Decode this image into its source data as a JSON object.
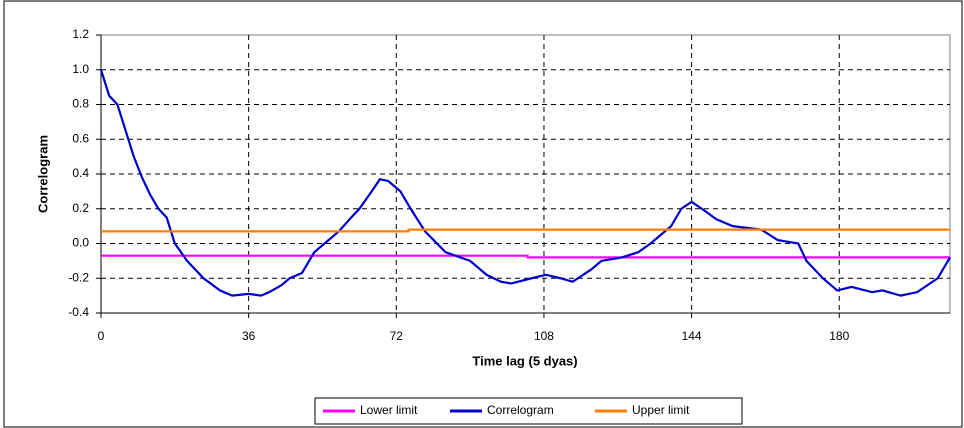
{
  "chart_data": {
    "type": "line",
    "x_label": "Time lag (5 dyas)",
    "y_label": "Correlogram",
    "xlim": [
      0,
      207
    ],
    "xticks": [
      0,
      36,
      72,
      108,
      144,
      180
    ],
    "ylim": [
      -0.4,
      1.2
    ],
    "yticks": [
      -0.4,
      -0.2,
      {
        "value": 0,
        "label": "0.0"
      },
      0.2,
      0.4,
      0.6,
      0.8,
      {
        "value": 1,
        "label": "1.0"
      },
      1.2
    ],
    "grid": true,
    "legend": "bottom",
    "series": [
      {
        "name": "Lower limit",
        "color": "#ff00ff",
        "x": [
          0,
          104,
          104,
          207
        ],
        "values": [
          -0.07,
          -0.07,
          -0.08,
          -0.08
        ]
      },
      {
        "name": "Correlogram",
        "color": "#0000cc",
        "x": [
          0,
          2,
          4,
          6,
          8,
          10,
          12,
          14,
          16,
          18,
          21,
          25,
          29,
          32,
          36,
          39,
          41,
          44,
          46,
          49,
          52,
          55,
          58,
          61,
          63,
          66,
          68,
          70,
          73,
          75.5,
          79,
          84,
          90,
          94,
          97.5,
          100,
          105,
          108.5,
          112,
          115,
          119.5,
          122,
          127,
          131,
          134,
          139,
          141.5,
          144,
          146.5,
          150,
          154,
          161,
          165,
          170,
          172,
          176,
          179.5,
          183,
          188,
          190.5,
          195,
          199,
          204,
          207
        ],
        "values": [
          1.0,
          0.85,
          0.8,
          0.65,
          0.5,
          0.38,
          0.28,
          0.2,
          0.15,
          0.0,
          -0.1,
          -0.2,
          -0.27,
          -0.3,
          -0.29,
          -0.3,
          -0.28,
          -0.24,
          -0.2,
          -0.17,
          -0.05,
          0.01,
          0.07,
          0.15,
          0.2,
          0.3,
          0.37,
          0.36,
          0.3,
          0.2,
          0.07,
          -0.05,
          -0.1,
          -0.18,
          -0.22,
          -0.23,
          -0.2,
          -0.18,
          -0.2,
          -0.22,
          -0.15,
          -0.1,
          -0.08,
          -0.05,
          0.0,
          0.1,
          0.2,
          0.24,
          0.2,
          0.14,
          0.1,
          0.08,
          0.02,
          0.0,
          -0.1,
          -0.2,
          -0.27,
          -0.25,
          -0.28,
          -0.27,
          -0.3,
          -0.28,
          -0.2,
          -0.08
        ]
      },
      {
        "name": "Upper limit",
        "color": "#ff7f00",
        "x": [
          0,
          75,
          75,
          207
        ],
        "values": [
          0.07,
          0.07,
          0.08,
          0.08
        ]
      }
    ]
  }
}
